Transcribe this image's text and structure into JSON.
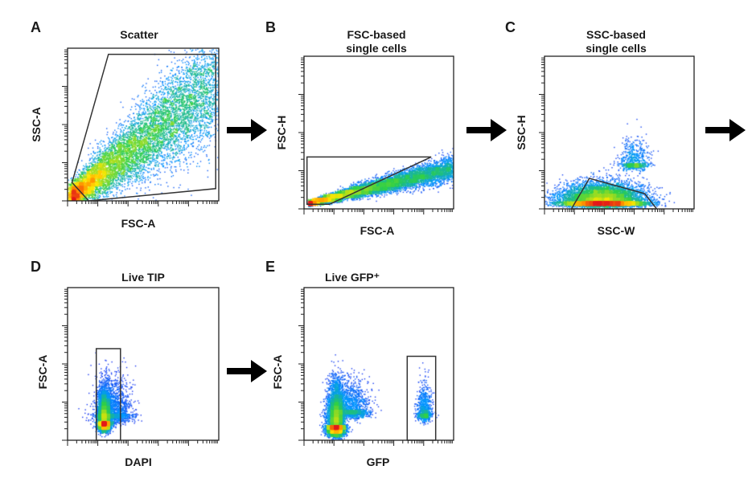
{
  "chart_data": [
    {
      "panel": "A",
      "type": "scatter",
      "title": "Scatter",
      "xlabel": "FSC-A",
      "ylabel": "SSC-A",
      "gate_shape": "polygon",
      "density": "blue-green-yellow-red pseudocolor",
      "populations": [
        {
          "kind": "diagonal",
          "x": [
            0.02,
            1.0
          ],
          "y": [
            0.03,
            0.78
          ],
          "spread": 0.16,
          "weight": 1.0
        }
      ],
      "gate": [
        [
          0.03,
          0.12
        ],
        [
          0.27,
          0.96
        ],
        [
          0.98,
          0.96
        ],
        [
          0.98,
          0.08
        ],
        [
          0.14,
          0.0
        ]
      ]
    },
    {
      "panel": "B",
      "type": "scatter",
      "title": "FSC-based\nsingle cells",
      "xlabel": "FSC-A",
      "ylabel": "FSC-H",
      "gate_shape": "polygon",
      "density": "blue-green-yellow-red pseudocolor",
      "populations": [
        {
          "kind": "diagonal",
          "x": [
            0.03,
            1.0
          ],
          "y": [
            0.04,
            0.27
          ],
          "spread": 0.035,
          "weight": 1.0
        }
      ],
      "gate": [
        [
          0.02,
          0.34
        ],
        [
          0.85,
          0.34
        ],
        [
          0.17,
          0.03
        ],
        [
          0.02,
          0.03
        ]
      ]
    },
    {
      "panel": "C",
      "type": "scatter",
      "title": "SSC-based\nsingle cells",
      "xlabel": "SSC-W",
      "ylabel": "SSC-H",
      "gate_shape": "polygon",
      "density": "blue-green-yellow-red pseudocolor",
      "populations": [
        {
          "kind": "cluster",
          "cx": 0.38,
          "cy": 0.05,
          "sx": 0.28,
          "sy": 0.06,
          "weight": 1.0
        },
        {
          "kind": "cluster",
          "cx": 0.6,
          "cy": 0.3,
          "sx": 0.1,
          "sy": 0.08,
          "weight": 0.08
        }
      ],
      "gate": [
        [
          0.18,
          0.0
        ],
        [
          0.3,
          0.2
        ],
        [
          0.67,
          0.1
        ],
        [
          0.75,
          0.0
        ]
      ]
    },
    {
      "panel": "D",
      "type": "scatter",
      "title": "Live TIP",
      "xlabel": "DAPI",
      "ylabel": "FSC-A",
      "gate_shape": "rectangle",
      "density": "blue-green-yellow-red pseudocolor",
      "populations": [
        {
          "kind": "cluster",
          "cx": 0.24,
          "cy": 0.12,
          "sx": 0.04,
          "sy": 0.1,
          "weight": 0.8
        },
        {
          "kind": "cluster",
          "cx": 0.3,
          "cy": 0.18,
          "sx": 0.12,
          "sy": 0.12,
          "weight": 0.2
        }
      ],
      "gate": [
        [
          0.19,
          0.0
        ],
        [
          0.35,
          0.0
        ],
        [
          0.35,
          0.6
        ],
        [
          0.19,
          0.6
        ]
      ]
    },
    {
      "panel": "E",
      "type": "scatter",
      "title": "Live GFP⁺",
      "xlabel": "GFP",
      "ylabel": "FSC-A",
      "gate_shape": "rectangle",
      "density": "blue-green-yellow-red pseudocolor",
      "populations": [
        {
          "kind": "cluster",
          "cx": 0.21,
          "cy": 0.1,
          "sx": 0.06,
          "sy": 0.13,
          "weight": 0.75
        },
        {
          "kind": "cluster",
          "cx": 0.32,
          "cy": 0.2,
          "sx": 0.12,
          "sy": 0.1,
          "weight": 0.15
        },
        {
          "kind": "cluster",
          "cx": 0.8,
          "cy": 0.18,
          "sx": 0.05,
          "sy": 0.09,
          "weight": 0.1
        }
      ],
      "gate": [
        [
          0.69,
          0.0
        ],
        [
          0.88,
          0.0
        ],
        [
          0.88,
          0.55
        ],
        [
          0.69,
          0.55
        ]
      ]
    }
  ],
  "flow_arrows": [
    "A-to-B",
    "B-to-C",
    "C-to-next",
    "D-to-E"
  ],
  "colors": {
    "density_low": "#1f2cf0",
    "density_mid": "#2ecf4a",
    "density_high": "#ffe800",
    "density_peak": "#e31a1c",
    "frame": "#222222"
  }
}
